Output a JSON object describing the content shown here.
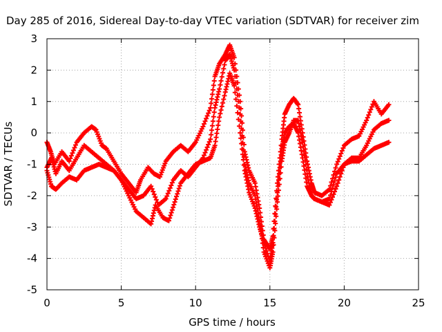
{
  "chart_data": {
    "type": "scatter",
    "title": "Day 285 of 2016, Sidereal Day-to-day VTEC variation (SDTVAR) for receiver zim",
    "xlabel": "GPS time / hours",
    "ylabel": "SDTVAR / TECUs",
    "xlim": [
      0,
      25
    ],
    "ylim": [
      -5,
      3
    ],
    "xticks": [
      0,
      5,
      10,
      15,
      20,
      25
    ],
    "yticks": [
      -5,
      -4,
      -3,
      -2,
      -1,
      0,
      1,
      2,
      3
    ],
    "xtick_labels": [
      "0",
      "5",
      "10",
      "15",
      "20",
      "25"
    ],
    "ytick_labels": [
      "-5",
      "-4",
      "-3",
      "-2",
      "-1",
      "0",
      "1",
      "2",
      "3"
    ],
    "grid": true,
    "marker": "+",
    "color": "#ff0000",
    "series": [
      {
        "x": [
          0.0,
          0.25,
          0.5,
          1.0,
          1.5,
          2.0,
          2.5,
          3.0,
          3.3,
          3.7,
          4.0,
          4.5,
          5.0,
          5.5,
          6.0,
          6.3,
          6.8,
          7.2,
          7.6,
          8.0,
          8.5,
          9.0,
          9.5,
          10.0,
          10.5,
          11.0,
          11.3,
          11.6,
          12.0,
          12.3,
          12.6,
          13.0,
          13.3,
          13.6,
          14.0,
          14.3,
          14.6,
          15.0,
          15.2,
          15.5,
          15.8,
          16.0,
          16.3,
          16.6,
          16.9,
          17.2,
          17.5,
          17.8,
          18.0,
          18.5,
          19.0,
          19.5,
          20.0,
          20.5,
          21.0,
          21.5,
          22.0,
          22.5,
          23.0
        ],
        "y": [
          -0.3,
          -0.6,
          -1.0,
          -0.6,
          -0.9,
          -0.3,
          0.0,
          0.2,
          0.1,
          -0.4,
          -0.5,
          -0.9,
          -1.3,
          -1.6,
          -1.9,
          -1.5,
          -1.1,
          -1.3,
          -1.4,
          -0.9,
          -0.6,
          -0.4,
          -0.6,
          -0.3,
          0.2,
          0.8,
          1.8,
          2.2,
          2.5,
          2.8,
          2.4,
          1.0,
          -0.6,
          -1.2,
          -1.6,
          -2.4,
          -3.4,
          -3.7,
          -3.3,
          -1.6,
          -0.2,
          0.6,
          0.9,
          1.1,
          0.9,
          0.0,
          -0.9,
          -1.6,
          -1.9,
          -2.0,
          -1.8,
          -1.0,
          -0.4,
          -0.2,
          -0.1,
          0.4,
          1.0,
          0.6,
          0.9
        ]
      },
      {
        "x": [
          0.0,
          0.3,
          0.6,
          1.0,
          1.5,
          2.0,
          2.5,
          3.0,
          3.5,
          4.0,
          4.5,
          5.0,
          5.5,
          6.0,
          6.5,
          7.0,
          7.5,
          8.0,
          8.5,
          9.0,
          9.5,
          10.0,
          10.5,
          11.0,
          11.3,
          11.6,
          12.0,
          12.3,
          12.6,
          13.0,
          13.3,
          13.6,
          14.0,
          14.3,
          14.6,
          15.0,
          15.2,
          15.5,
          15.8,
          16.0,
          16.3,
          16.6,
          16.9,
          17.2,
          17.5,
          17.8,
          18.0,
          18.5,
          19.0,
          19.5,
          20.0,
          20.5,
          21.0,
          21.5,
          22.0,
          22.5,
          23.0
        ],
        "y": [
          -1.1,
          -0.8,
          -1.3,
          -0.9,
          -1.2,
          -0.8,
          -0.4,
          -0.6,
          -0.8,
          -1.0,
          -1.2,
          -1.5,
          -1.8,
          -2.1,
          -2.0,
          -1.7,
          -2.3,
          -2.1,
          -1.5,
          -1.2,
          -1.4,
          -1.1,
          -0.8,
          -0.2,
          0.8,
          1.4,
          2.3,
          2.5,
          2.0,
          0.6,
          -1.0,
          -1.6,
          -2.0,
          -2.8,
          -3.8,
          -4.3,
          -3.8,
          -2.2,
          -0.9,
          -0.3,
          0.0,
          0.4,
          0.4,
          -0.3,
          -1.3,
          -2.0,
          -2.1,
          -2.2,
          -2.3,
          -1.7,
          -1.0,
          -0.8,
          -0.8,
          -0.4,
          0.1,
          0.3,
          0.4
        ]
      },
      {
        "x": [
          0.0,
          0.3,
          0.6,
          1.0,
          1.5,
          2.0,
          2.5,
          3.0,
          3.5,
          4.0,
          4.5,
          5.0,
          5.5,
          6.0,
          6.5,
          7.0,
          7.3,
          7.8,
          8.2,
          8.6,
          9.0,
          9.5,
          10.0,
          10.5,
          11.0,
          11.3,
          11.6,
          12.0,
          12.3,
          12.6,
          13.0,
          13.3,
          13.6,
          14.0,
          14.3,
          14.6,
          15.0,
          15.2,
          15.5,
          15.8,
          16.0,
          16.3,
          16.6,
          16.9,
          17.2,
          17.5,
          17.8,
          18.0,
          18.5,
          19.0,
          19.5,
          20.0,
          20.5,
          21.0,
          21.5,
          22.0,
          22.5,
          23.0
        ],
        "y": [
          -1.2,
          -1.7,
          -1.8,
          -1.6,
          -1.4,
          -1.5,
          -1.2,
          -1.1,
          -1.0,
          -1.1,
          -1.2,
          -1.5,
          -2.0,
          -2.5,
          -2.7,
          -2.9,
          -2.3,
          -2.7,
          -2.8,
          -2.2,
          -1.6,
          -1.3,
          -1.0,
          -0.9,
          -0.8,
          -0.4,
          0.5,
          1.3,
          1.9,
          1.5,
          0.0,
          -1.2,
          -1.9,
          -2.4,
          -3.0,
          -3.5,
          -4.1,
          -3.5,
          -1.9,
          -0.5,
          0.0,
          0.2,
          0.3,
          0.0,
          -0.8,
          -1.7,
          -2.0,
          -2.1,
          -2.2,
          -2.1,
          -1.3,
          -1.0,
          -0.9,
          -0.9,
          -0.7,
          -0.5,
          -0.4,
          -0.3
        ]
      }
    ]
  }
}
